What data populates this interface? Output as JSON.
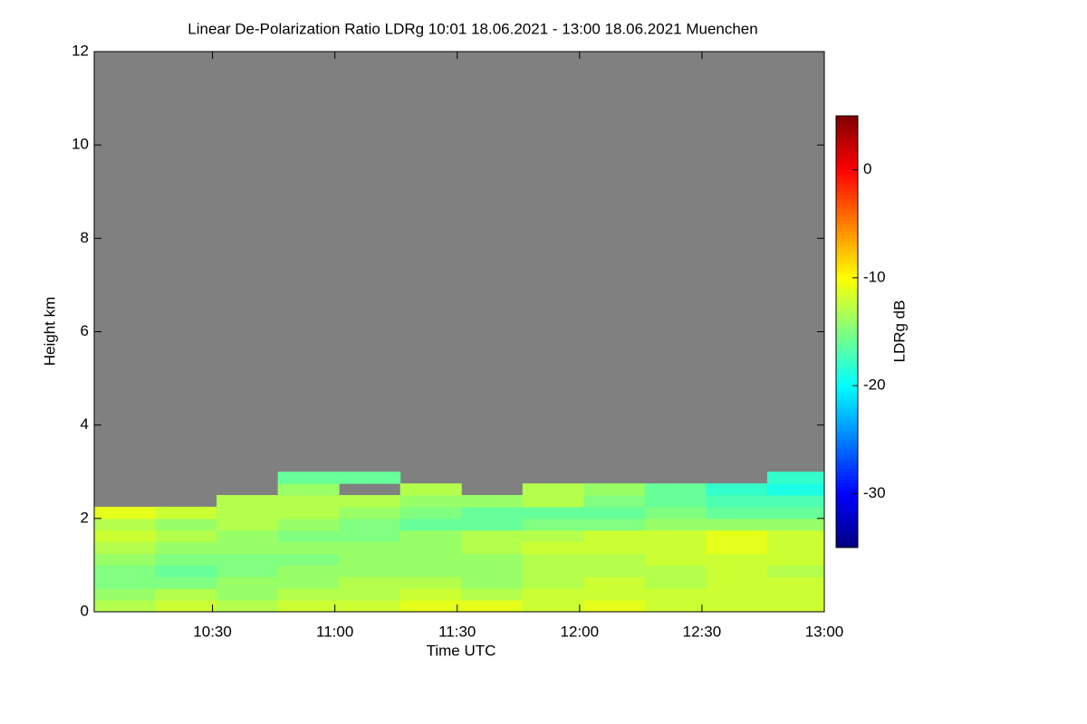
{
  "chart_data": {
    "type": "heatmap",
    "title": "Linear De-Polarization Ratio LDRg   10:01 18.06.2021 - 13:00 18.06.2021 Muenchen",
    "xlabel": "Time UTC",
    "ylabel": "Height km",
    "colorbar_label": "LDRg dB",
    "x": [
      "10:01",
      "10:16",
      "10:31",
      "10:46",
      "11:01",
      "11:16",
      "11:31",
      "11:46",
      "12:01",
      "12:16",
      "12:31",
      "12:46",
      "13:00"
    ],
    "y": [
      0,
      0.25,
      0.5,
      0.75,
      1,
      1.25,
      1.5,
      1.75,
      2,
      2.25,
      2.5,
      2.75,
      3
    ],
    "z": [
      [
        -13,
        -12,
        -13,
        -12,
        -12,
        -11,
        -11,
        -12,
        -11,
        -12,
        -12,
        -12
      ],
      [
        -14,
        -13,
        -14,
        -13,
        -13,
        -12,
        -13,
        -12,
        -12,
        -12,
        -12,
        -12
      ],
      [
        -15,
        -15,
        -14,
        -14,
        -13,
        -13,
        -14,
        -13,
        -12,
        -13,
        -12,
        -12
      ],
      [
        -15,
        -16,
        -15,
        -14,
        -14,
        -14,
        -14,
        -13,
        -13,
        -13,
        -12,
        -13
      ],
      [
        -14,
        -15,
        -15,
        -15,
        -14,
        -14,
        -14,
        -13,
        -13,
        -12,
        -12,
        -12
      ],
      [
        -13,
        -14,
        -14,
        -14,
        -14,
        -14,
        -13,
        -12,
        -12,
        -12,
        -11,
        -12
      ],
      [
        -12,
        -13,
        -14,
        -15,
        -15,
        -14,
        -13,
        -13,
        -12,
        -12,
        -11,
        -12
      ],
      [
        -13,
        -14,
        -13,
        -14,
        -15,
        -16,
        -16,
        -15,
        -15,
        -14,
        -14,
        -14
      ],
      [
        -11,
        -12,
        -13,
        -13,
        -14,
        -15,
        -16,
        -16,
        -16,
        -15,
        -16,
        -16
      ],
      [
        null,
        null,
        -13,
        -13,
        -13,
        -14,
        -14,
        -13,
        -15,
        -16,
        -17,
        -17
      ],
      [
        null,
        null,
        null,
        -14,
        null,
        -13,
        null,
        -13,
        -14,
        -16,
        -18,
        -19
      ],
      [
        null,
        null,
        null,
        -16,
        -16,
        null,
        null,
        null,
        null,
        null,
        null,
        -18
      ]
    ],
    "nodata_color": "#808080",
    "xlim": [
      "10:01",
      "13:00"
    ],
    "xticks": [
      "10:30",
      "11:00",
      "11:30",
      "12:00",
      "12:30",
      "13:00"
    ],
    "ylim": [
      0,
      12
    ],
    "yticks": [
      0,
      2,
      4,
      6,
      8,
      10,
      12
    ],
    "zlim": [
      -35,
      5
    ],
    "zticks": [
      0,
      -10,
      -20,
      -30
    ],
    "colormap": "jet"
  }
}
